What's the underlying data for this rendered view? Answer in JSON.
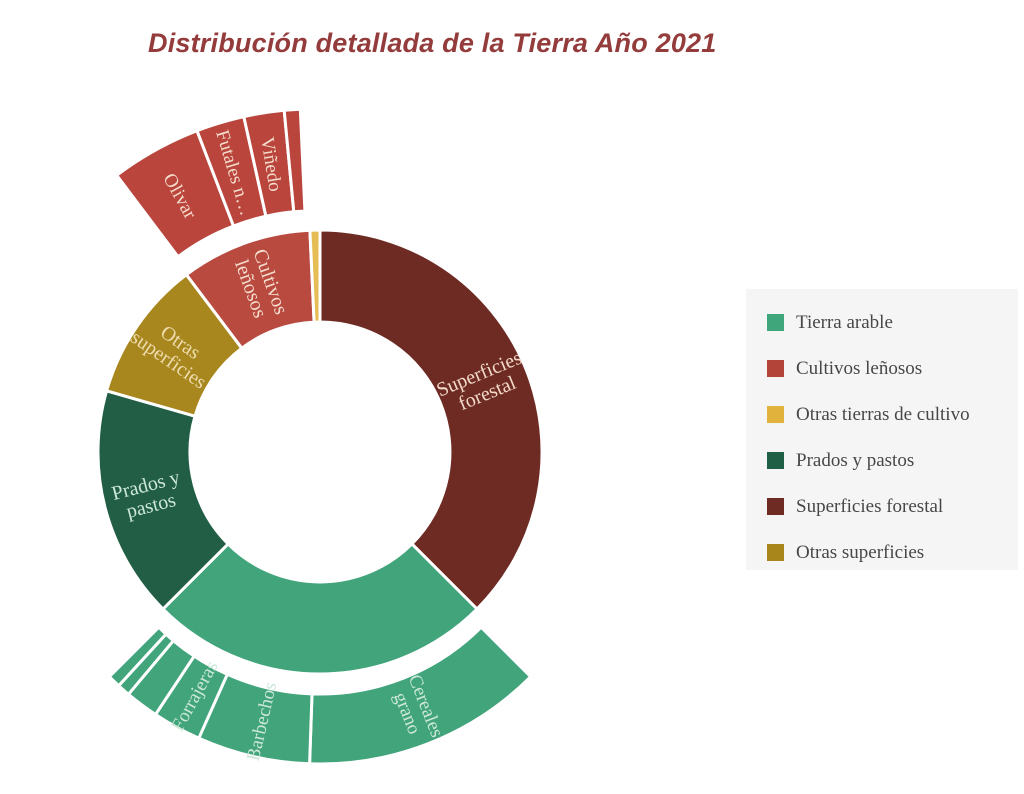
{
  "title": "Distribución detallada de la Tierra Año 2021",
  "title_color": "#943b3b",
  "legend": {
    "background": "#f5f5f5",
    "text_color": "#474747",
    "items": [
      {
        "label": "Tierra arable",
        "color": "#3fa57b"
      },
      {
        "label": "Cultivos leñosos",
        "color": "#b2443a"
      },
      {
        "label": "Otras tierras de cultivo",
        "color": "#e2b33c"
      },
      {
        "label": "Prados y pastos",
        "color": "#1e5f45"
      },
      {
        "label": "Superficies forestal",
        "color": "#6e2b24"
      },
      {
        "label": "Otras superficies",
        "color": "#a8861c"
      }
    ]
  },
  "chart_data": {
    "type": "pie",
    "variant": "two-ring sunburst / donut with exploded sub-slice groups",
    "title": "Distribución detallada de la Tierra Año 2021",
    "units": "share of total land in % (no numeric labels shown; estimated from arc angles, clockwise from 12 o'clock)",
    "legend_position": "right",
    "rings": [
      {
        "name": "inner",
        "slices": [
          {
            "label": "Superficies forestal",
            "label_lines": [
              "Superficies",
              "forestal"
            ],
            "color": "#6e2b24",
            "label_color": "#f2d9c8",
            "start_deg": 0,
            "end_deg": 135,
            "pct": 37.5
          },
          {
            "label": "Tierra arable",
            "label_lines": [],
            "color": "#41a47b",
            "label_color": "#cde8d9",
            "start_deg": 135,
            "end_deg": 225,
            "pct": 25.0
          },
          {
            "label": "Prados y pastos",
            "label_lines": [
              "Prados y",
              "pastos"
            ],
            "color": "#215e45",
            "label_color": "#cde8d9",
            "start_deg": 225,
            "end_deg": 286,
            "pct": 16.9
          },
          {
            "label": "Otras superficies",
            "label_lines": [
              "Otras",
              "superficies"
            ],
            "color": "#a8871e",
            "label_color": "#eedcae",
            "start_deg": 286,
            "end_deg": 323,
            "pct": 10.3
          },
          {
            "label": "Cultivos leñosos",
            "label_lines": [
              "Cultivos",
              "leñosos"
            ],
            "color": "#b94a40",
            "label_color": "#f4dccc",
            "start_deg": 323,
            "end_deg": 357.4,
            "pct": 9.6
          },
          {
            "label": "Otras tierras de cultivo",
            "label_lines": [],
            "color": "#e6bd55",
            "label_color": "#ffffff",
            "start_deg": 357.4,
            "end_deg": 360,
            "pct": 0.7
          }
        ]
      },
      {
        "name": "outer-tierra-arable",
        "parent": "Tierra arable",
        "slices": [
          {
            "label": "Cereales grano",
            "label_lines": [
              "Cereales",
              "grano"
            ],
            "color": "#41a47b",
            "label_color": "#cde8d9",
            "start_deg": 135,
            "end_deg": 182,
            "pct": 13.1
          },
          {
            "label": "Barbechos",
            "label_lines": [
              "Barbechos"
            ],
            "color": "#41a47b",
            "label_color": "#cde8d9",
            "start_deg": 182,
            "end_deg": 204,
            "pct": 6.1
          },
          {
            "label": "Forrajeras",
            "label_lines": [
              "Forrajeras"
            ],
            "color": "#41a47b",
            "label_color": "#cde8d9",
            "start_deg": 204,
            "end_deg": 213.5,
            "pct": 2.6
          },
          {
            "label": null,
            "label_lines": [],
            "color": "#41a47b",
            "label_color": "#cde8d9",
            "start_deg": 213.5,
            "end_deg": 220,
            "pct": 1.8
          },
          {
            "label": null,
            "label_lines": [],
            "color": "#41a47b",
            "label_color": "#cde8d9",
            "start_deg": 220,
            "end_deg": 222.5,
            "pct": 0.7
          },
          {
            "label": null,
            "label_lines": [],
            "color": "#41a47b",
            "label_color": "#cde8d9",
            "start_deg": 222.5,
            "end_deg": 225,
            "pct": 0.7
          }
        ]
      },
      {
        "name": "outer-cultivos-lenosos",
        "parent": "Cultivos leñosos",
        "slices": [
          {
            "label": "Olivar",
            "label_lines": [
              "Olivar"
            ],
            "color": "#b9453c",
            "label_color": "#f4dccc",
            "start_deg": 323,
            "end_deg": 339,
            "pct": 4.4
          },
          {
            "label": "Futales n…",
            "label_lines": [
              "Futales n…"
            ],
            "color": "#b9453c",
            "label_color": "#f4dccc",
            "start_deg": 339,
            "end_deg": 347.5,
            "pct": 2.4
          },
          {
            "label": "Viñedo",
            "label_lines": [
              "Viñedo"
            ],
            "color": "#b9453c",
            "label_color": "#f4dccc",
            "start_deg": 347.5,
            "end_deg": 354.6,
            "pct": 2.0
          },
          {
            "label": null,
            "label_lines": [],
            "color": "#b9453c",
            "label_color": "#f4dccc",
            "start_deg": 354.6,
            "end_deg": 357.4,
            "pct": 0.8
          }
        ]
      }
    ]
  }
}
